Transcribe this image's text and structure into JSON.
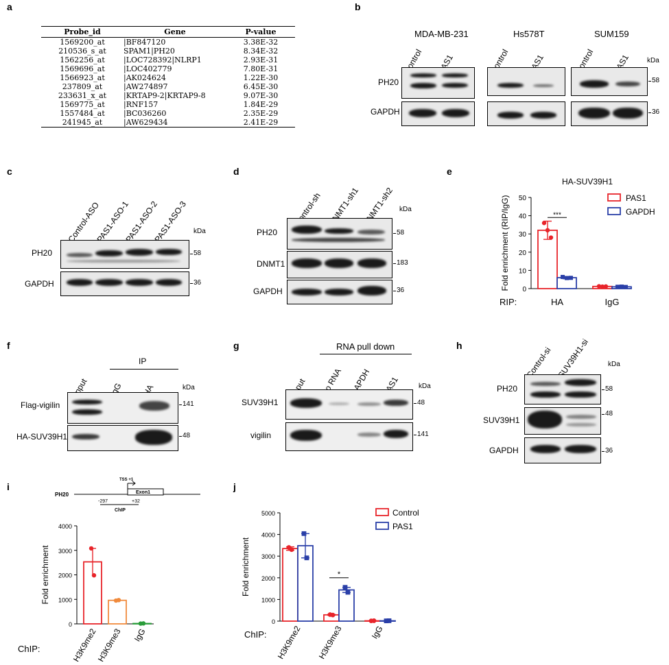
{
  "panels": {
    "a": "a",
    "b": "b",
    "c": "c",
    "d": "d",
    "e": "e",
    "f": "f",
    "g": "g",
    "h": "h",
    "i": "i",
    "j": "j"
  },
  "table": {
    "headers": [
      "Probe_id",
      "Gene",
      "P-value"
    ],
    "rows": [
      [
        "1569200_at",
        "|BF847120",
        "3.38E-32"
      ],
      [
        "210536_s_at",
        "SPAM1|PH20",
        "8.34E-32"
      ],
      [
        "1562256_at",
        "|LOC728392|NLRP1",
        "2.93E-31"
      ],
      [
        "1569696_at",
        "|LOC402779",
        "7.80E-31"
      ],
      [
        "1566923_at",
        "|AK024624",
        "1.22E-30"
      ],
      [
        "237809_at",
        "|AW274897",
        "6.45E-30"
      ],
      [
        "233631_x_at",
        "|KRTAP9-2|KRTAP9-8",
        "9.07E-30"
      ],
      [
        "1569775_at",
        "|RNF157",
        "1.84E-29"
      ],
      [
        "1557484_at",
        "|BC036260",
        "2.35E-29"
      ],
      [
        "241945_at",
        "|AW629434",
        "2.41E-29"
      ]
    ]
  },
  "blots": {
    "b": {
      "cell_lines": [
        "MDA-MB-231",
        "Hs578T",
        "SUM159"
      ],
      "lanes": [
        "Control",
        "PAS1"
      ],
      "rows": [
        "PH20",
        "GAPDH"
      ],
      "kda_unit": "kDa",
      "markers": [
        "58",
        "36"
      ]
    },
    "c": {
      "lanes": [
        "Control-ASO",
        "PAS1-ASO-1",
        "PAS1-ASO-2",
        "PAS1-ASO-3"
      ],
      "rows": [
        "PH20",
        "GAPDH"
      ],
      "kda_unit": "kDa",
      "markers": [
        "58",
        "36"
      ]
    },
    "d": {
      "lanes": [
        "Control-sh",
        "DNMT1-sh1",
        "DNMT1-sh2"
      ],
      "rows": [
        "PH20",
        "DNMT1",
        "GAPDH"
      ],
      "kda_unit": "kDa",
      "markers": [
        "58",
        "183",
        "36"
      ]
    },
    "f": {
      "lanes": [
        "Input",
        "IgG",
        "HA"
      ],
      "ip_label": "IP",
      "rows": [
        "Flag-vigilin",
        "HA-SUV39H1"
      ],
      "kda_unit": "kDa",
      "markers": [
        "141",
        "48"
      ]
    },
    "g": {
      "lanes": [
        "Input",
        "No RNA",
        "GAPDH",
        "PAS1"
      ],
      "header": "RNA pull down",
      "rows": [
        "SUV39H1",
        "vigilin"
      ],
      "kda_unit": "kDa",
      "markers": [
        "48",
        "141"
      ]
    },
    "h": {
      "lanes": [
        "Control-si",
        "SUV39H1-si"
      ],
      "rows": [
        "PH20",
        "SUV39H1",
        "GAPDH"
      ],
      "kda_unit": "kDa",
      "markers": [
        "58",
        "48",
        "36"
      ]
    }
  },
  "schematic": {
    "gene": "PH20",
    "tss": "TSS +1",
    "exon": "Exon1",
    "start": "-297",
    "end": "+32",
    "chip": "ChIP"
  },
  "chart_data": [
    {
      "id": "e",
      "type": "bar",
      "title": "HA-SUV39H1",
      "ylabel": "Fold enrichment (RIP/IgG)",
      "ylim": [
        0,
        50
      ],
      "yticks": [
        0,
        10,
        20,
        30,
        40,
        50
      ],
      "x_prefix": "RIP:",
      "categories": [
        "HA",
        "IgG"
      ],
      "series": [
        {
          "name": "PAS1",
          "color": "#e8242a",
          "values": [
            32,
            1.2
          ],
          "err": [
            5,
            0.3
          ],
          "points": [
            [
              36,
              32,
              28
            ],
            [
              1.3,
              1.1,
              1.2
            ]
          ]
        },
        {
          "name": "GAPDH",
          "color": "#2a3fa8",
          "values": [
            6,
            1.0
          ],
          "err": [
            0.6,
            0.2
          ],
          "points": [
            [
              6.4,
              5.8,
              5.9
            ],
            [
              1.0,
              1.1,
              0.9
            ]
          ]
        }
      ],
      "significance": [
        {
          "label": "***"
        }
      ]
    },
    {
      "id": "i",
      "type": "bar",
      "ylabel": "Fold enrichment",
      "ylim": [
        0,
        4000
      ],
      "yticks": [
        0,
        1000,
        2000,
        3000,
        4000
      ],
      "x_prefix": "ChIP:",
      "categories": [
        "H3K9me2",
        "H3K9me3",
        "IgG"
      ],
      "colors": [
        "#e8242a",
        "#f08a3c",
        "#2a9d3a"
      ],
      "values": [
        2530,
        960,
        15
      ],
      "err": [
        550,
        10,
        3
      ],
      "points": [
        [
          3080,
          1980
        ],
        [
          950,
          970
        ],
        [
          12,
          18
        ]
      ]
    },
    {
      "id": "j",
      "type": "bar",
      "ylabel": "Fold enrichment",
      "ylim": [
        0,
        5000
      ],
      "yticks": [
        0,
        1000,
        2000,
        3000,
        4000,
        5000
      ],
      "x_prefix": "ChIP:",
      "categories": [
        "H3K9me2",
        "H3K9me3",
        "IgG"
      ],
      "series": [
        {
          "name": "Control",
          "color": "#e8242a",
          "values": [
            3350,
            290,
            15
          ],
          "err": [
            80,
            20,
            3
          ],
          "points": [
            [
              3400,
              3300
            ],
            [
              300,
              280
            ],
            [
              12,
              18
            ]
          ]
        },
        {
          "name": "PAS1",
          "color": "#2a3fa8",
          "values": [
            3480,
            1440,
            15
          ],
          "err": [
            560,
            120,
            3
          ],
          "points": [
            [
              4040,
              2920
            ],
            [
              1560,
              1330
            ],
            [
              12,
              18
            ]
          ]
        }
      ],
      "significance": [
        {
          "label": "*"
        }
      ]
    }
  ]
}
